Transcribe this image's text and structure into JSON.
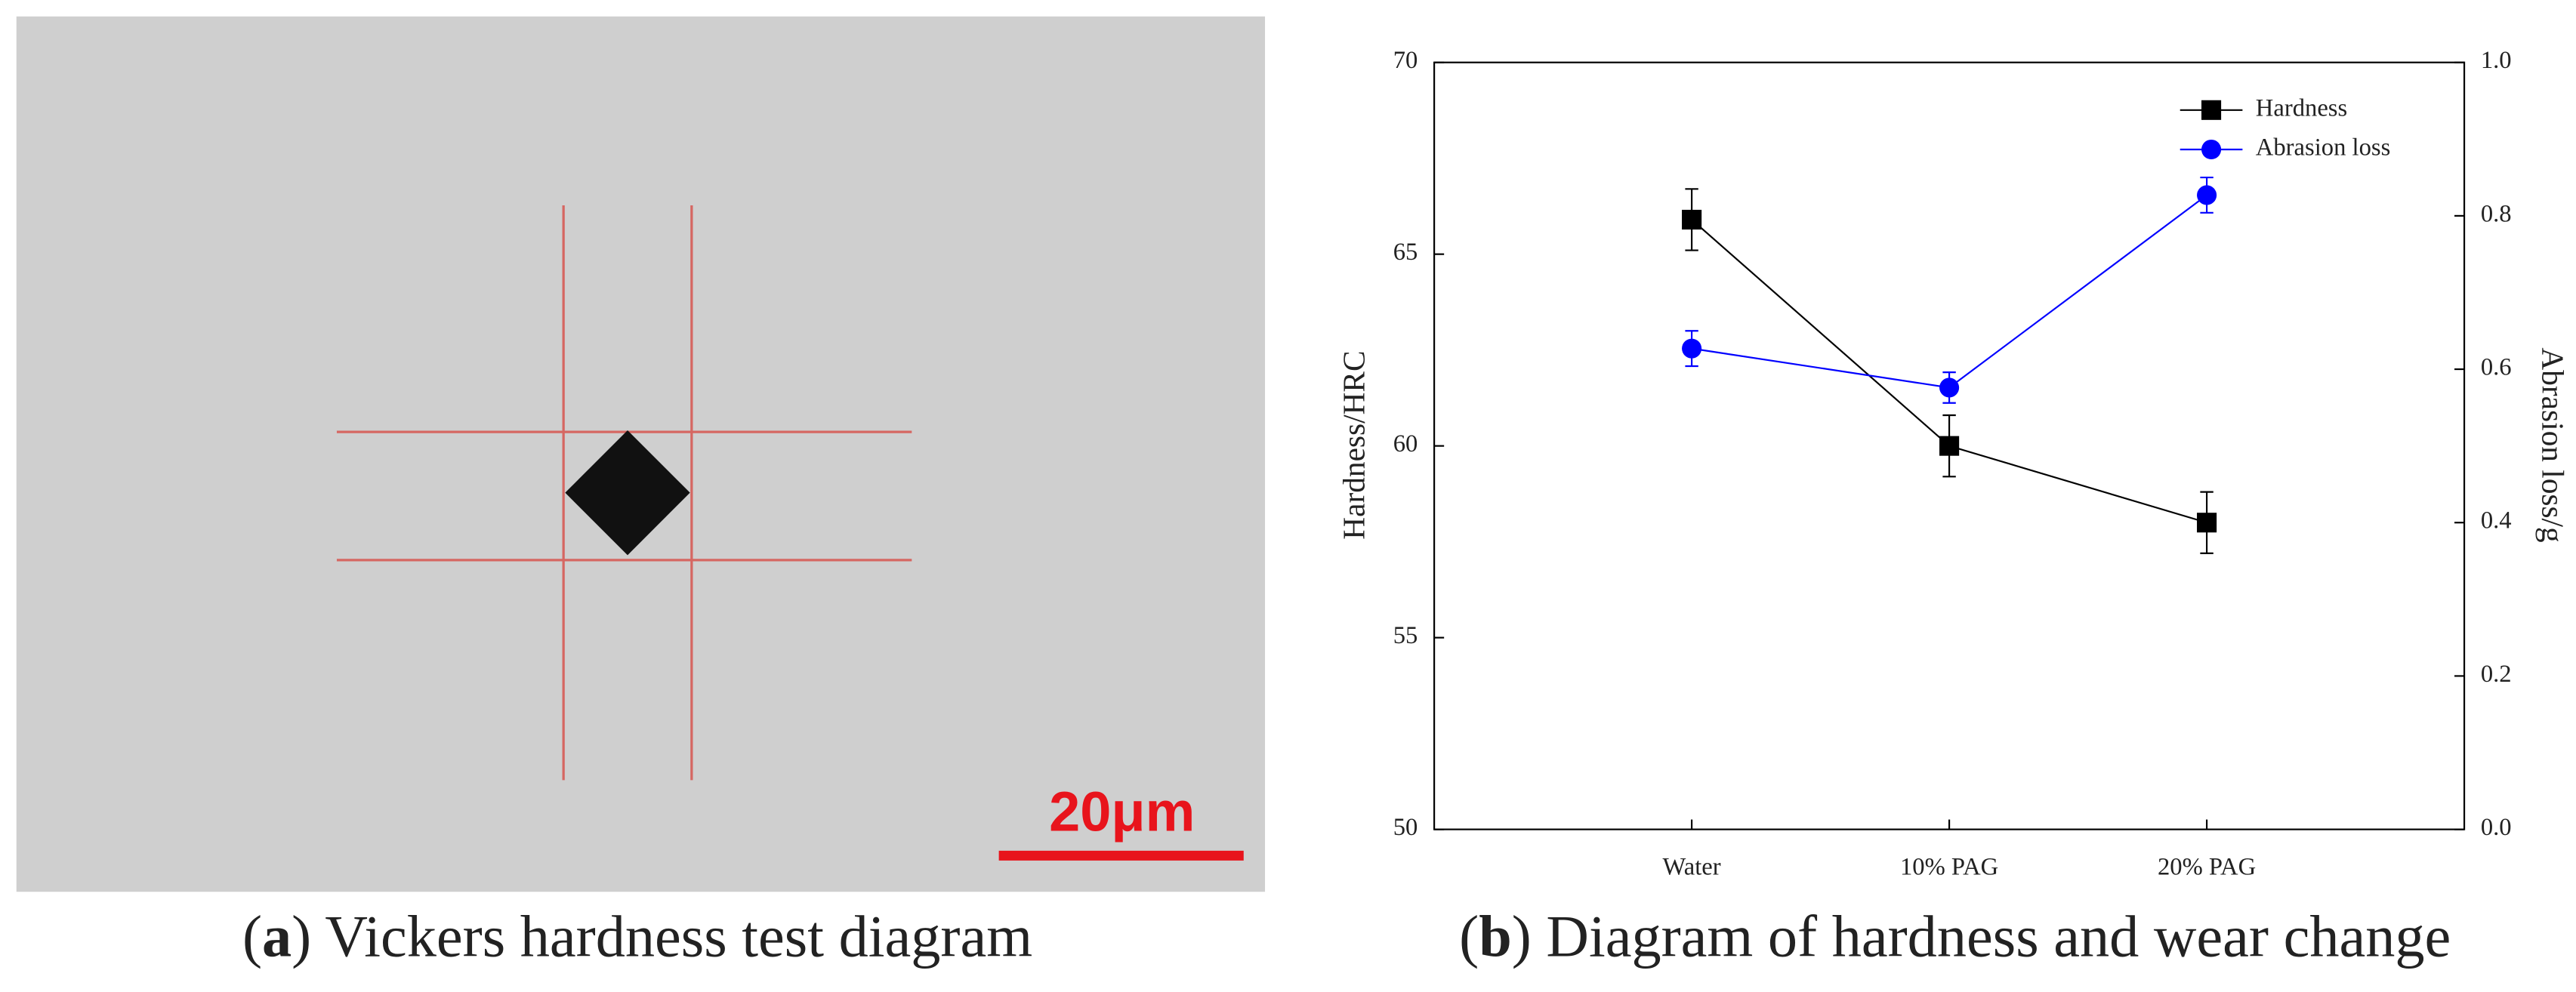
{
  "image_panel": {
    "scale_bar": "20μm",
    "caption": {
      "open": "(",
      "label": "a",
      "text": ") Vickers hardness test diagram"
    }
  },
  "chart_caption": {
    "open": "(",
    "label": "b",
    "text": ") Diagram of hardness and wear change"
  },
  "chart_data": {
    "type": "line",
    "categories": [
      "Water",
      "10% PAG",
      "20% PAG"
    ],
    "y_label": "Hardness/HRC",
    "y2_label": "Abrasion loss/g",
    "ylim": [
      50,
      70
    ],
    "yticks": [
      50,
      55,
      60,
      65,
      70
    ],
    "y2lim": [
      0,
      1
    ],
    "y2ticks": [
      {
        "value": 0,
        "label": "0.0"
      },
      {
        "value": 0.2,
        "label": "0.2"
      },
      {
        "value": 0.4,
        "label": "0.4"
      },
      {
        "value": 0.6,
        "label": "0.6"
      },
      {
        "value": 0.8,
        "label": "0.8"
      },
      {
        "value": 1,
        "label": "1.0"
      }
    ],
    "legend": "upper right",
    "series": [
      {
        "name": "Hardness",
        "color": "#000000",
        "marker": "square",
        "values": [
          65.9,
          60.0,
          58.0
        ],
        "errors": [
          0.8,
          0.8,
          0.8
        ]
      },
      {
        "name": "Abrasion loss",
        "color": "#0000ff",
        "marker": "circle",
        "axis": "y2",
        "values": [
          0.627,
          0.576,
          0.827
        ],
        "errors": [
          0.023,
          0.02,
          0.023
        ]
      }
    ]
  }
}
